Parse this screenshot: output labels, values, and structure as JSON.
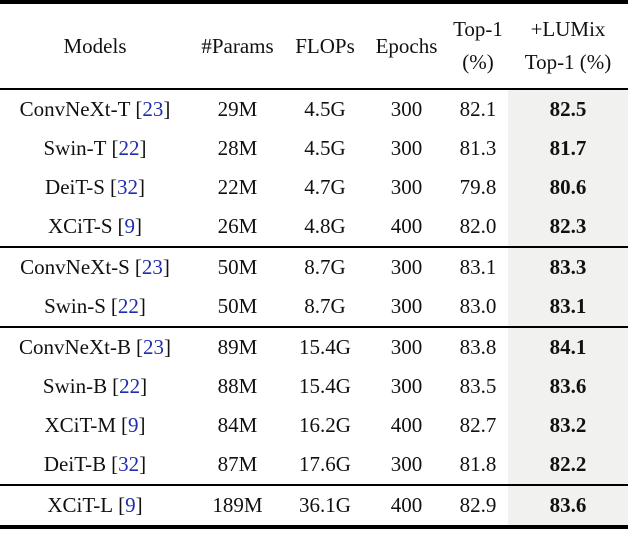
{
  "colors": {
    "citation_blue": "#1f2daf",
    "highlight_column_bg": "#f1f1ef",
    "rule_black": "#000000",
    "text_black": "#111111"
  },
  "table": {
    "cite_open": "[",
    "cite_close": "]",
    "headers": {
      "models": "Models",
      "params": "#Params",
      "flops": "FLOPs",
      "epochs": "Epochs",
      "top1_line1": "Top-1",
      "top1_line2": "(%)",
      "lumix_line1": "+LUMix",
      "lumix_line2": "Top-1 (%)"
    },
    "rows": [
      {
        "group": 1,
        "model": "ConvNeXt-T",
        "cite": "23",
        "params": "29M",
        "flops": "4.5G",
        "epochs": "300",
        "top1": "82.1",
        "lumix_top1": "82.5"
      },
      {
        "group": 1,
        "model": "Swin-T",
        "cite": "22",
        "params": "28M",
        "flops": "4.5G",
        "epochs": "300",
        "top1": "81.3",
        "lumix_top1": "81.7"
      },
      {
        "group": 1,
        "model": "DeiT-S",
        "cite": "32",
        "params": "22M",
        "flops": "4.7G",
        "epochs": "300",
        "top1": "79.8",
        "lumix_top1": "80.6"
      },
      {
        "group": 1,
        "model": "XCiT-S",
        "cite": "9",
        "params": "26M",
        "flops": "4.8G",
        "epochs": "400",
        "top1": "82.0",
        "lumix_top1": "82.3"
      },
      {
        "group": 2,
        "model": "ConvNeXt-S",
        "cite": "23",
        "params": "50M",
        "flops": "8.7G",
        "epochs": "300",
        "top1": "83.1",
        "lumix_top1": "83.3"
      },
      {
        "group": 2,
        "model": "Swin-S",
        "cite": "22",
        "params": "50M",
        "flops": "8.7G",
        "epochs": "300",
        "top1": "83.0",
        "lumix_top1": "83.1"
      },
      {
        "group": 3,
        "model": "ConvNeXt-B",
        "cite": "23",
        "params": "89M",
        "flops": "15.4G",
        "epochs": "300",
        "top1": "83.8",
        "lumix_top1": "84.1"
      },
      {
        "group": 3,
        "model": "Swin-B",
        "cite": "22",
        "params": "88M",
        "flops": "15.4G",
        "epochs": "300",
        "top1": "83.5",
        "lumix_top1": "83.6"
      },
      {
        "group": 3,
        "model": "XCiT-M",
        "cite": "9",
        "params": "84M",
        "flops": "16.2G",
        "epochs": "400",
        "top1": "82.7",
        "lumix_top1": "83.2"
      },
      {
        "group": 3,
        "model": "DeiT-B",
        "cite": "32",
        "params": "87M",
        "flops": "17.6G",
        "epochs": "300",
        "top1": "81.8",
        "lumix_top1": "82.2"
      },
      {
        "group": 4,
        "model": "XCiT-L",
        "cite": "9",
        "params": "189M",
        "flops": "36.1G",
        "epochs": "400",
        "top1": "82.9",
        "lumix_top1": "83.6"
      }
    ]
  }
}
